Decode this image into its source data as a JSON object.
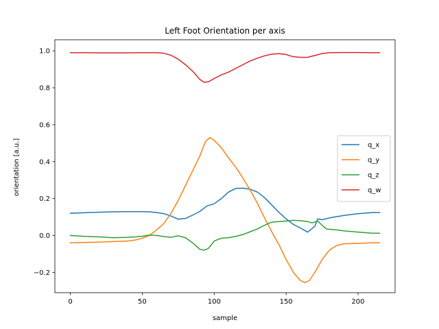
{
  "chart_data": {
    "type": "line",
    "title": "Left Foot Orientation per axis",
    "xlabel": "sample",
    "ylabel": "orientation [a.u.]",
    "xlim": [
      -10.75,
      225.75
    ],
    "ylim": [
      -0.31,
      1.06
    ],
    "xticks": [
      0,
      50,
      100,
      150,
      200
    ],
    "yticks": [
      -0.2,
      0.0,
      0.2,
      0.4,
      0.6,
      0.8,
      1.0
    ],
    "ytick_labels": [
      "−0.2",
      "0.0",
      "0.2",
      "0.4",
      "0.6",
      "0.8",
      "1.0"
    ],
    "grid": false,
    "legend_position": "center-right",
    "series": [
      {
        "name": "q_x",
        "color": "#1f77b4",
        "points": [
          [
            0,
            0.12
          ],
          [
            10,
            0.123
          ],
          [
            20,
            0.126
          ],
          [
            30,
            0.128
          ],
          [
            40,
            0.129
          ],
          [
            50,
            0.129
          ],
          [
            55,
            0.128
          ],
          [
            60,
            0.124
          ],
          [
            65,
            0.118
          ],
          [
            70,
            0.105
          ],
          [
            75,
            0.088
          ],
          [
            80,
            0.092
          ],
          [
            85,
            0.11
          ],
          [
            90,
            0.13
          ],
          [
            95,
            0.16
          ],
          [
            100,
            0.172
          ],
          [
            105,
            0.2
          ],
          [
            110,
            0.235
          ],
          [
            115,
            0.255
          ],
          [
            120,
            0.256
          ],
          [
            125,
            0.25
          ],
          [
            130,
            0.235
          ],
          [
            135,
            0.205
          ],
          [
            140,
            0.165
          ],
          [
            145,
            0.125
          ],
          [
            150,
            0.09
          ],
          [
            155,
            0.06
          ],
          [
            160,
            0.04
          ],
          [
            165,
            0.018
          ],
          [
            170,
            0.05
          ],
          [
            172,
            0.09
          ],
          [
            175,
            0.085
          ],
          [
            180,
            0.095
          ],
          [
            190,
            0.108
          ],
          [
            200,
            0.118
          ],
          [
            210,
            0.124
          ],
          [
            215,
            0.124
          ]
        ]
      },
      {
        "name": "q_y",
        "color": "#ff7f0e",
        "points": [
          [
            0,
            -0.04
          ],
          [
            10,
            -0.038
          ],
          [
            20,
            -0.036
          ],
          [
            30,
            -0.033
          ],
          [
            40,
            -0.03
          ],
          [
            45,
            -0.025
          ],
          [
            50,
            -0.015
          ],
          [
            55,
            0.0
          ],
          [
            60,
            0.03
          ],
          [
            65,
            0.065
          ],
          [
            70,
            0.12
          ],
          [
            75,
            0.19
          ],
          [
            80,
            0.27
          ],
          [
            85,
            0.35
          ],
          [
            90,
            0.43
          ],
          [
            94,
            0.51
          ],
          [
            97,
            0.53
          ],
          [
            100,
            0.515
          ],
          [
            105,
            0.475
          ],
          [
            110,
            0.42
          ],
          [
            115,
            0.37
          ],
          [
            120,
            0.31
          ],
          [
            125,
            0.245
          ],
          [
            130,
            0.175
          ],
          [
            135,
            0.095
          ],
          [
            140,
            0.02
          ],
          [
            145,
            -0.05
          ],
          [
            150,
            -0.13
          ],
          [
            155,
            -0.2
          ],
          [
            160,
            -0.245
          ],
          [
            163,
            -0.255
          ],
          [
            166,
            -0.245
          ],
          [
            170,
            -0.2
          ],
          [
            175,
            -0.13
          ],
          [
            180,
            -0.08
          ],
          [
            185,
            -0.055
          ],
          [
            190,
            -0.045
          ],
          [
            200,
            -0.043
          ],
          [
            210,
            -0.04
          ],
          [
            215,
            -0.04
          ]
        ]
      },
      {
        "name": "q_z",
        "color": "#2ca02c",
        "points": [
          [
            0,
            0.0
          ],
          [
            10,
            -0.005
          ],
          [
            20,
            -0.008
          ],
          [
            30,
            -0.012
          ],
          [
            40,
            -0.01
          ],
          [
            45,
            -0.008
          ],
          [
            50,
            -0.004
          ],
          [
            55,
            0.002
          ],
          [
            60,
            0.0
          ],
          [
            65,
            -0.006
          ],
          [
            70,
            -0.01
          ],
          [
            75,
            -0.002
          ],
          [
            80,
            -0.012
          ],
          [
            85,
            -0.04
          ],
          [
            90,
            -0.075
          ],
          [
            93,
            -0.08
          ],
          [
            96,
            -0.07
          ],
          [
            100,
            -0.03
          ],
          [
            105,
            -0.015
          ],
          [
            110,
            -0.012
          ],
          [
            115,
            -0.005
          ],
          [
            120,
            0.005
          ],
          [
            125,
            0.02
          ],
          [
            130,
            0.035
          ],
          [
            135,
            0.055
          ],
          [
            140,
            0.072
          ],
          [
            145,
            0.075
          ],
          [
            150,
            0.078
          ],
          [
            155,
            0.082
          ],
          [
            160,
            0.08
          ],
          [
            165,
            0.075
          ],
          [
            168,
            0.068
          ],
          [
            172,
            0.078
          ],
          [
            175,
            0.055
          ],
          [
            178,
            0.035
          ],
          [
            185,
            0.03
          ],
          [
            190,
            0.025
          ],
          [
            200,
            0.018
          ],
          [
            210,
            0.012
          ],
          [
            215,
            0.012
          ]
        ]
      },
      {
        "name": "q_w",
        "color": "#d62728",
        "points": [
          [
            0,
            0.99
          ],
          [
            10,
            0.99
          ],
          [
            20,
            0.989
          ],
          [
            30,
            0.989
          ],
          [
            40,
            0.989
          ],
          [
            50,
            0.99
          ],
          [
            60,
            0.99
          ],
          [
            65,
            0.987
          ],
          [
            70,
            0.976
          ],
          [
            75,
            0.955
          ],
          [
            80,
            0.925
          ],
          [
            85,
            0.89
          ],
          [
            90,
            0.845
          ],
          [
            93,
            0.83
          ],
          [
            96,
            0.832
          ],
          [
            100,
            0.85
          ],
          [
            105,
            0.87
          ],
          [
            110,
            0.885
          ],
          [
            115,
            0.905
          ],
          [
            120,
            0.925
          ],
          [
            125,
            0.945
          ],
          [
            130,
            0.96
          ],
          [
            135,
            0.973
          ],
          [
            140,
            0.982
          ],
          [
            145,
            0.985
          ],
          [
            150,
            0.98
          ],
          [
            155,
            0.968
          ],
          [
            160,
            0.965
          ],
          [
            165,
            0.965
          ],
          [
            170,
            0.975
          ],
          [
            175,
            0.985
          ],
          [
            180,
            0.99
          ],
          [
            190,
            0.991
          ],
          [
            200,
            0.991
          ],
          [
            210,
            0.99
          ],
          [
            215,
            0.99
          ]
        ]
      }
    ]
  }
}
